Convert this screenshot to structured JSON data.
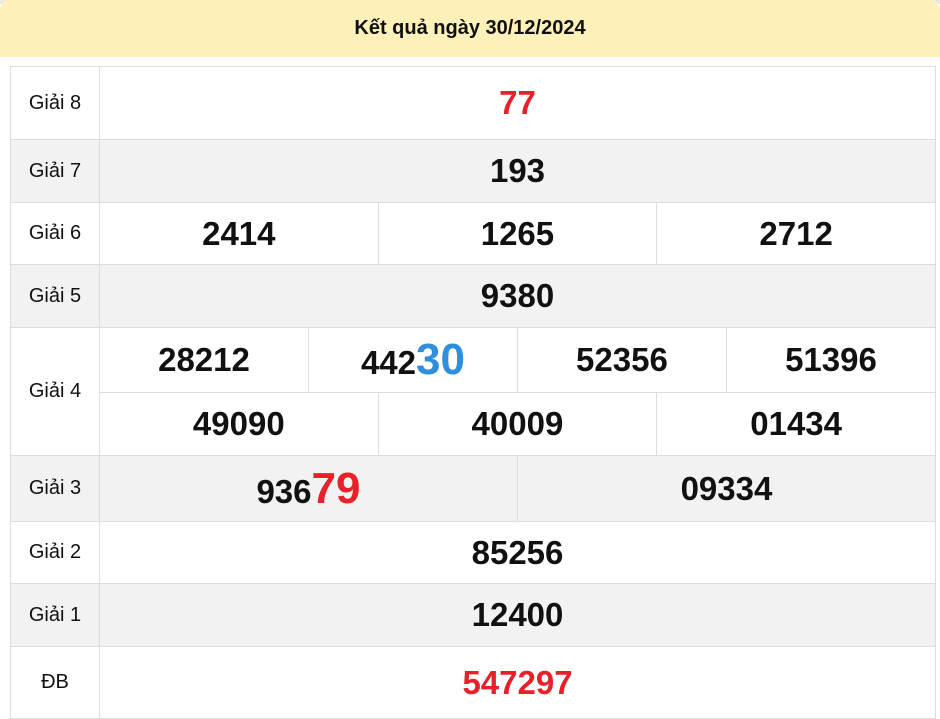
{
  "title": "Kết quả ngày 30/12/2024",
  "colors": {
    "header_bg": "#fdf0b9",
    "highlight_red": "#e8202a",
    "highlight_blue": "#2f8fdc",
    "alt_row": "#f2f2f2"
  },
  "prizes": {
    "g8": {
      "label": "Giải 8",
      "numbers": [
        "77"
      ]
    },
    "g7": {
      "label": "Giải 7",
      "numbers": [
        "193"
      ]
    },
    "g6": {
      "label": "Giải 6",
      "numbers": [
        "2414",
        "1265",
        "2712"
      ]
    },
    "g5": {
      "label": "Giải 5",
      "numbers": [
        "9380"
      ]
    },
    "g4": {
      "label": "Giải 4",
      "numbers": [
        "28212",
        "442",
        "30",
        "52356",
        "51396",
        "49090",
        "40009",
        "01434"
      ]
    },
    "g3": {
      "label": "Giải 3",
      "numbers": [
        "936",
        "79",
        "09334"
      ]
    },
    "g2": {
      "label": "Giải 2",
      "numbers": [
        "85256"
      ]
    },
    "g1": {
      "label": "Giải 1",
      "numbers": [
        "12400"
      ]
    },
    "db": {
      "label": "ĐB",
      "numbers": [
        "547297"
      ]
    }
  }
}
